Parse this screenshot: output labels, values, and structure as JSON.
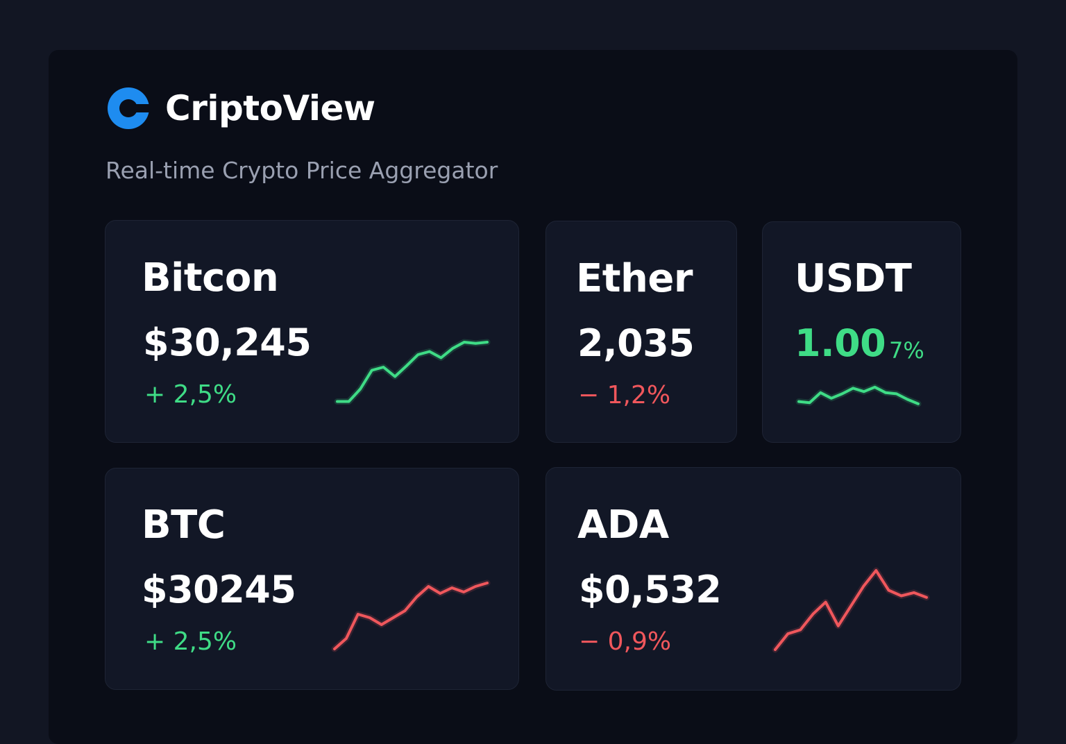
{
  "app": {
    "title": "CriptoView",
    "subtitle": "Real-time Crypto Price Aggregator"
  },
  "colors": {
    "up": "#3fdc86",
    "down": "#f0575c",
    "accent": "#1e8cf0"
  },
  "cards": [
    {
      "name": "Bitcon",
      "price": "$30,245",
      "change": "+ 2,5%",
      "trend": "up",
      "spark": [
        0.05,
        0.05,
        0.25,
        0.55,
        0.6,
        0.45,
        0.62,
        0.8,
        0.85,
        0.75,
        0.9,
        1.0,
        0.98,
        1.0
      ]
    },
    {
      "name": "Ether",
      "price": "2,035",
      "change": "− 1,2%",
      "trend": "down"
    },
    {
      "name": "USDT",
      "price": "1.00",
      "change": "7%",
      "trend": "up",
      "spark": [
        0.2,
        0.15,
        0.6,
        0.35,
        0.55,
        0.8,
        0.65,
        0.85,
        0.6,
        0.55,
        0.3,
        0.1
      ]
    },
    {
      "name": "BTC",
      "price": "$30245",
      "change": "+ 2,5%",
      "trend": "up",
      "spark_trend": "down",
      "spark": [
        0.0,
        0.15,
        0.5,
        0.45,
        0.35,
        0.45,
        0.55,
        0.75,
        0.9,
        0.8,
        0.88,
        0.82,
        0.9,
        0.95
      ]
    },
    {
      "name": "ADA",
      "price": "$0,532",
      "change": "− 0,9%",
      "trend": "down",
      "spark": [
        0.0,
        0.2,
        0.25,
        0.45,
        0.6,
        0.3,
        0.55,
        0.8,
        1.0,
        0.75,
        0.68,
        0.72,
        0.66
      ]
    }
  ]
}
